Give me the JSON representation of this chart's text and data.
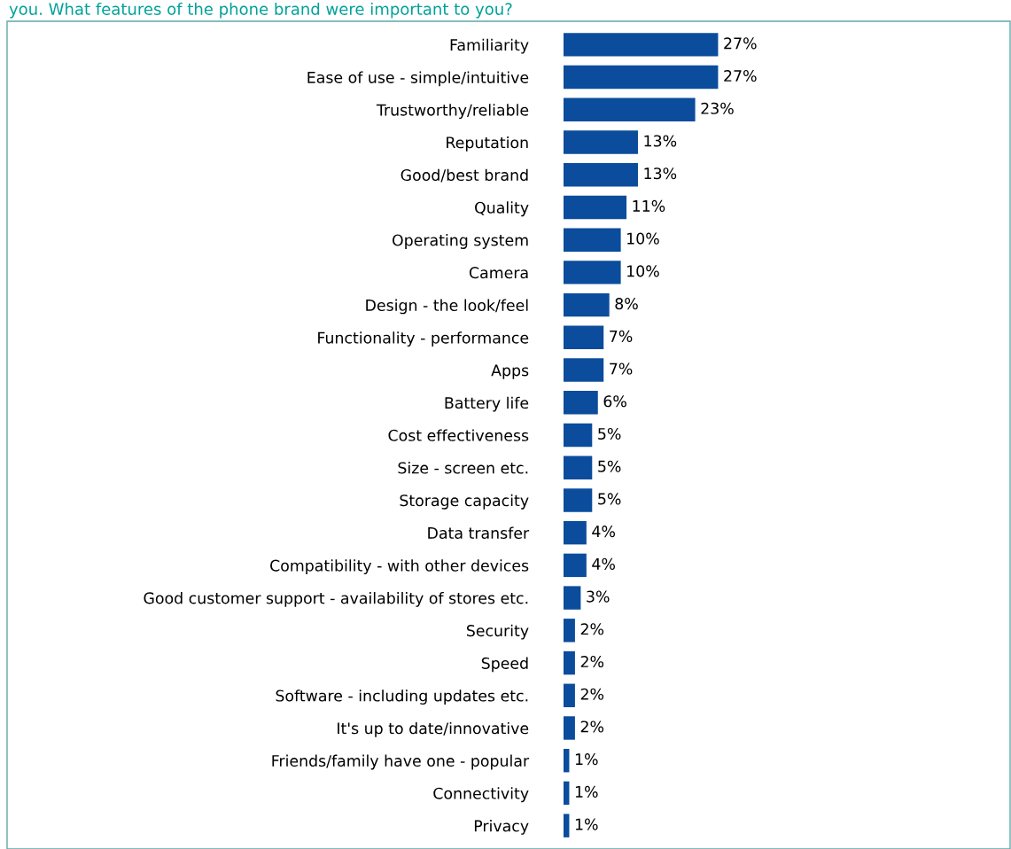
{
  "chart_data": {
    "type": "bar",
    "orientation": "horizontal",
    "title": "you. What features of the phone brand were important to you?",
    "categories": [
      "Familiarity",
      "Ease of use - simple/intuitive",
      "Trustworthy/reliable",
      "Reputation",
      "Good/best brand",
      "Quality",
      "Operating system",
      "Camera",
      "Design - the look/feel",
      "Functionality - performance",
      "Apps",
      "Battery life",
      "Cost effectiveness",
      "Size - screen etc.",
      "Storage capacity",
      "Data transfer",
      "Compatibility - with other devices",
      "Good customer support - availability of stores etc.",
      "Security",
      "Speed",
      "Software - including updates etc.",
      "It's up to date/innovative",
      "Friends/family have one - popular",
      "Connectivity",
      "Privacy"
    ],
    "values": [
      27,
      27,
      23,
      13,
      13,
      11,
      10,
      10,
      8,
      7,
      7,
      6,
      5,
      5,
      5,
      4,
      4,
      3,
      2,
      2,
      2,
      2,
      1,
      1,
      1
    ],
    "value_labels": [
      "27%",
      "27%",
      "23%",
      "13%",
      "13%",
      "11%",
      "10%",
      "10%",
      "8%",
      "7%",
      "7%",
      "6%",
      "5%",
      "5%",
      "5%",
      "4%",
      "4%",
      "3%",
      "2%",
      "2%",
      "2%",
      "2%",
      "1%",
      "1%",
      "1%"
    ],
    "color": "#0b4c9c",
    "grid": false,
    "legend": false,
    "tick_labels": "y"
  }
}
